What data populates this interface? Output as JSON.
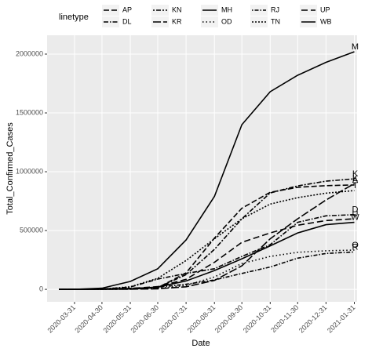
{
  "chart_data": {
    "type": "line",
    "x_label": "Date",
    "y_label": "Total_Confirmed_Cases",
    "legend_title": "linetype",
    "x": [
      "2020-03-14",
      "2020-03-31",
      "2020-04-30",
      "2020-05-31",
      "2020-06-30",
      "2020-07-31",
      "2020-08-31",
      "2020-09-30",
      "2020-10-31",
      "2020-11-30",
      "2020-12-31",
      "2021-01-31"
    ],
    "xlim": [
      "2020-03-01",
      "2021-02-03"
    ],
    "xticks": [
      "2020-03-31",
      "2020-04-30",
      "2020-05-31",
      "2020-06-30",
      "2020-07-31",
      "2020-08-31",
      "2020-09-30",
      "2020-10-31",
      "2020-11-30",
      "2020-12-31",
      "2021-01-31"
    ],
    "ylim": [
      -106000,
      2160000
    ],
    "yticks": [
      0,
      500000,
      1000000,
      1500000,
      2000000
    ],
    "grid": true,
    "legend_position": "top",
    "series": [
      {
        "name": "AP",
        "end_label": "A",
        "color": "#000000",
        "dash": "7 3",
        "values": [
          0,
          40,
          1400,
          3600,
          14500,
          140000,
          435000,
          690000,
          825000,
          868000,
          882000,
          888000
        ]
      },
      {
        "name": "DL",
        "end_label": "D",
        "color": "#000000",
        "dash": "6 2 1.5 2",
        "values": [
          0,
          100,
          3500,
          19000,
          87000,
          135000,
          175000,
          280000,
          380000,
          570000,
          625000,
          635000
        ]
      },
      {
        "name": "KN",
        "end_label": "K",
        "color": "#000000",
        "dash": "2 2 6 2",
        "values": [
          0,
          100,
          550,
          3200,
          15000,
          125000,
          340000,
          600000,
          820000,
          880000,
          920000,
          940000
        ]
      },
      {
        "name": "KR",
        "end_label": "K",
        "color": "#000000",
        "dash": "10 3",
        "values": [
          0,
          240,
          500,
          1200,
          4400,
          22000,
          76000,
          200000,
          430000,
          600000,
          760000,
          900000
        ]
      },
      {
        "name": "MH",
        "end_label": "M",
        "color": "#000000",
        "dash": "none",
        "values": [
          0,
          300,
          10000,
          67000,
          175000,
          420000,
          790000,
          1400000,
          1680000,
          1820000,
          1930000,
          2020000
        ]
      },
      {
        "name": "OD",
        "end_label": "O",
        "color": "#000000",
        "dash": "1.5 3",
        "values": [
          0,
          10,
          150,
          1800,
          7000,
          33000,
          105000,
          220000,
          280000,
          315000,
          328000,
          334000
        ]
      },
      {
        "name": "RJ",
        "end_label": "R",
        "color": "#000000",
        "dash": "1.5 2 5 2",
        "values": [
          0,
          100,
          2600,
          8800,
          18000,
          43000,
          80000,
          135000,
          190000,
          265000,
          305000,
          318000
        ]
      },
      {
        "name": "TN",
        "end_label": "T",
        "color": "#000000",
        "dash": "2 2",
        "values": [
          0,
          120,
          2300,
          22000,
          94000,
          245000,
          430000,
          600000,
          725000,
          780000,
          818000,
          840000
        ]
      },
      {
        "name": "UP",
        "end_label": "U",
        "color": "#000000",
        "dash": "8 4",
        "values": [
          0,
          100,
          2200,
          7800,
          23000,
          85000,
          230000,
          400000,
          480000,
          545000,
          585000,
          600000
        ]
      },
      {
        "name": "WB",
        "end_label": "W",
        "color": "#000000",
        "dash": "none",
        "values": [
          0,
          30,
          800,
          5500,
          19000,
          71000,
          160000,
          260000,
          370000,
          480000,
          550000,
          570000
        ]
      }
    ]
  }
}
